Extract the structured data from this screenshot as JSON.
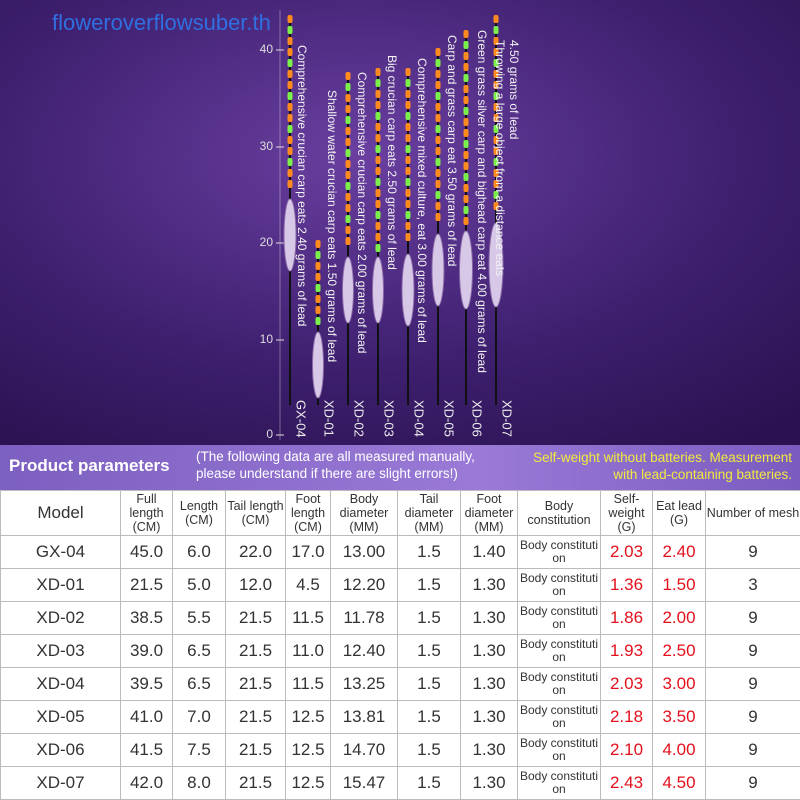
{
  "watermark": "floweroverflowsuber.th",
  "ruler": [
    "40",
    "30",
    "20",
    "10",
    "0"
  ],
  "floats": [
    {
      "model": "GX-04",
      "description": "Comprehensive crucian carp eats 2.40 grams of lead"
    },
    {
      "model": "XD-01",
      "description": "Shallow water crucian carp eats 1.50 grams of lead"
    },
    {
      "model": "XD-02",
      "description": "Comprehensive crucian carp eats 2.00 grams of lead"
    },
    {
      "model": "XD-03",
      "description": "Big crucian carp eats 2.50 grams of lead"
    },
    {
      "model": "XD-04",
      "description": "Comprehensive mixed culture, eat 3.00 grams of lead"
    },
    {
      "model": "XD-05",
      "description": "Carp and grass carp eat 3.50 grams of lead"
    },
    {
      "model": "XD-06",
      "description": "Green grass silver carp and bighead carp eat 4.00 grams of lead"
    },
    {
      "model": "XD-07",
      "description": "Throwing a large object from a distance eats 4.50 grams of lead"
    }
  ],
  "banner": {
    "title": "Product parameters",
    "note": "(The following data are all measured manually, please understand if there are slight errors!)",
    "side_note": "Self-weight without batteries. Measurement with lead-containing batteries."
  },
  "table": {
    "header": [
      "Model",
      "Full length (CM)",
      "Length (CM)",
      "Tail length (CM)",
      "Foot length (CM)",
      "Body diameter (MM)",
      "Tail diameter (MM)",
      "Foot diameter (MM)",
      "Body constitution",
      "Self-weight (G)",
      "Eat lead (G)",
      "Number of mesh"
    ],
    "rows": [
      [
        "GX-04",
        "45.0",
        "6.0",
        "22.0",
        "17.0",
        "13.00",
        "1.5",
        "1.40",
        "Body constitution",
        "2.03",
        "2.40",
        "9"
      ],
      [
        "XD-01",
        "21.5",
        "5.0",
        "12.0",
        "4.5",
        "12.20",
        "1.5",
        "1.30",
        "Body constitution",
        "1.36",
        "1.50",
        "3"
      ],
      [
        "XD-02",
        "38.5",
        "5.5",
        "21.5",
        "11.5",
        "11.78",
        "1.5",
        "1.30",
        "Body constitution",
        "1.86",
        "2.00",
        "9"
      ],
      [
        "XD-03",
        "39.0",
        "6.5",
        "21.5",
        "11.0",
        "12.40",
        "1.5",
        "1.30",
        "Body constitution",
        "1.93",
        "2.50",
        "9"
      ],
      [
        "XD-04",
        "39.5",
        "6.5",
        "21.5",
        "11.5",
        "13.25",
        "1.5",
        "1.30",
        "Body constitution",
        "2.03",
        "3.00",
        "9"
      ],
      [
        "XD-05",
        "41.0",
        "7.0",
        "21.5",
        "12.5",
        "13.81",
        "1.5",
        "1.30",
        "Body constitution",
        "2.18",
        "3.50",
        "9"
      ],
      [
        "XD-06",
        "41.5",
        "7.5",
        "21.5",
        "12.5",
        "14.70",
        "1.5",
        "1.30",
        "Body constitution",
        "2.10",
        "4.00",
        "9"
      ],
      [
        "XD-07",
        "42.0",
        "8.0",
        "21.5",
        "12.5",
        "15.47",
        "1.5",
        "1.30",
        "Body constitution",
        "2.43",
        "4.50",
        "9"
      ]
    ]
  }
}
